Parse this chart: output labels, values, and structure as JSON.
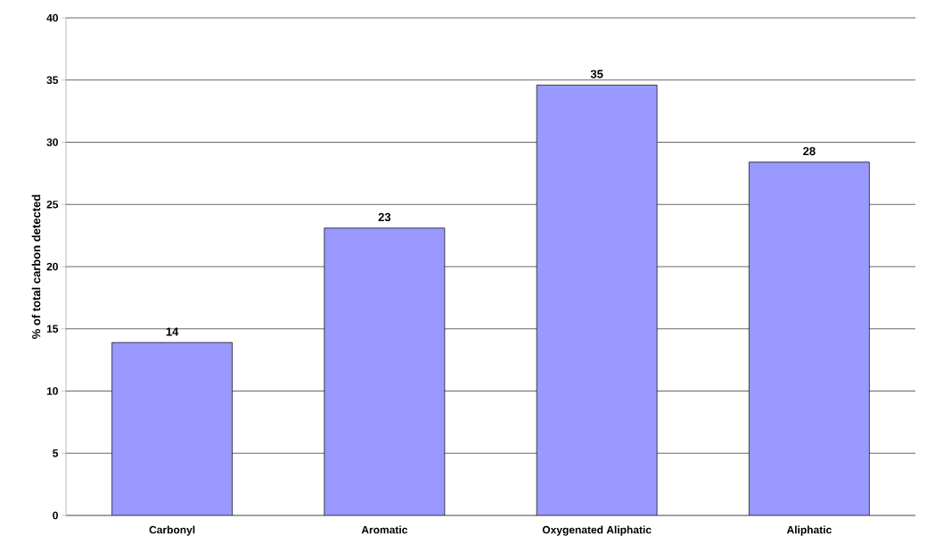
{
  "chart_data": {
    "type": "bar",
    "ylabel": "% of total carbon detected",
    "categories": [
      "Carbonyl",
      "Aromatic",
      "Oxygenated Aliphatic",
      "Aliphatic"
    ],
    "values": [
      13.9,
      23.1,
      34.6,
      28.4
    ],
    "value_labels": [
      "14",
      "23",
      "35",
      "28"
    ],
    "color": "#9999ff",
    "ylim": [
      0,
      40
    ],
    "yticks": [
      0,
      5,
      10,
      15,
      20,
      25,
      30,
      35,
      40
    ],
    "grid": "y"
  }
}
